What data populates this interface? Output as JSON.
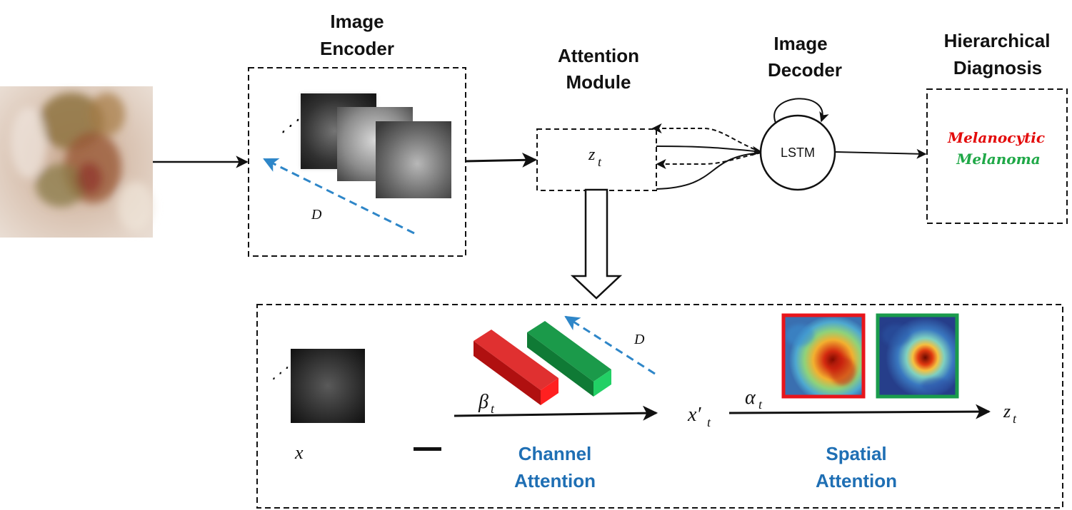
{
  "titles": {
    "image_encoder": [
      "Image",
      "Encoder"
    ],
    "attention_module": [
      "Attention",
      "Module"
    ],
    "image_decoder": [
      "Image",
      "Decoder"
    ],
    "hierarchical_diagnosis": [
      "Hierarchical",
      "Diagnosis"
    ],
    "channel_attention": [
      "Channel",
      "Attention"
    ],
    "spatial_attention": [
      "Spatial",
      "Attention"
    ]
  },
  "symbols": {
    "z_t_top": "z",
    "z_t_sub": "t",
    "D_top": "D",
    "D_bottom": "D",
    "ellipsis": "⋰",
    "x": "x",
    "beta": "β",
    "beta_sub": "t",
    "x_prime": "x′",
    "x_prime_sub": "t",
    "alpha": "α",
    "alpha_sub": "t",
    "z_out": "z",
    "z_out_sub": "t"
  },
  "lstm_label": "LSTM",
  "diagnosis": {
    "level1": "Melanocytic",
    "level2": "Melanoma",
    "level1_color": "#E30B0B",
    "level2_color": "#1FA847"
  },
  "colors": {
    "accent_blue": "#1F6FB4",
    "dash_blue": "#2E86C8",
    "red_bar": "#D01515",
    "green_bar": "#138A3A",
    "frame_red": "#E8151B",
    "frame_green": "#1A9B4C"
  }
}
